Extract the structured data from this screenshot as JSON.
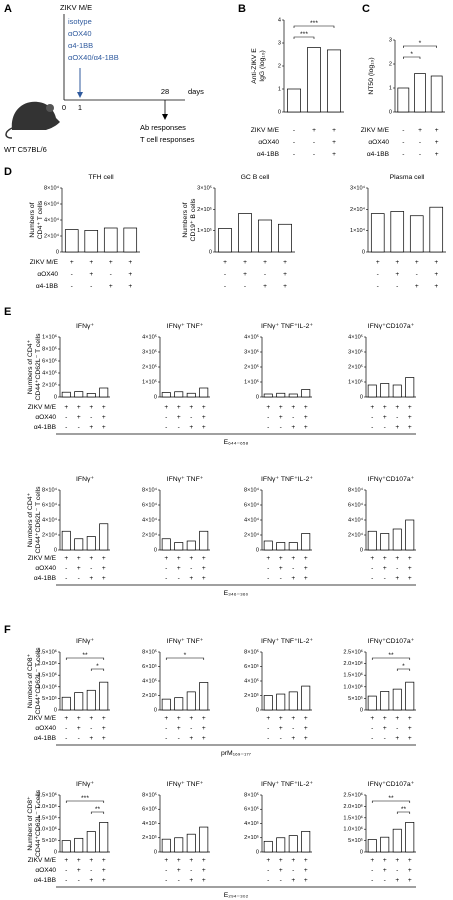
{
  "panel_labels": [
    "A",
    "B",
    "C",
    "D",
    "E",
    "F"
  ],
  "schematic": {
    "vaccine": "ZIKV M/E",
    "treatments": [
      "isotype",
      "αOX40",
      "α4-1BB",
      "αOX40/α4-1BB"
    ],
    "timepoints": [
      "0",
      "1",
      "28"
    ],
    "unit": "days",
    "readouts": [
      "Ab responses",
      "T cell responses"
    ],
    "mouse": "WT C57BL/6"
  },
  "condition_labels": [
    [
      "ZIKV M/E",
      "αOX40",
      "α4-1BB"
    ],
    [
      "ZIKV M/E",
      "αOX40",
      "α4-1BB"
    ],
    [
      "ZIKV M/E",
      "αOX40",
      "α4-1BB"
    ],
    [
      "ZIKV M/E",
      "αOX40",
      "α4-1BB"
    ],
    [
      "ZIKV M/E",
      "αOX40",
      "α4-1BB"
    ],
    [
      "ZIKV M/E",
      "αOX40",
      "α4-1BB"
    ],
    [
      "ZIKV M/E",
      "αOX40",
      "α4-1BB"
    ]
  ],
  "epitopes": [
    "E₆₄₄₋₆₅₈",
    "E₃₄₆₋₃₆₀",
    "prM₁₆₉₋₁₇₇",
    "E₂₉₄₋₃₀₂"
  ],
  "chart_data": [
    {
      "type": "bar",
      "y_label": [
        "Anti-ZIKV E",
        "IgG (log₁₀)"
      ],
      "values": [
        1.0,
        2.8,
        2.7
      ],
      "color": "#ffffff",
      "ylim": [
        0,
        4
      ],
      "yticks": [
        0,
        1,
        2,
        3,
        4
      ],
      "signs": [
        [
          "-",
          "+",
          "+"
        ],
        [
          "-",
          "-",
          "+"
        ],
        [
          "-",
          "-",
          "+"
        ]
      ],
      "annotations": [
        "***",
        "***"
      ]
    },
    {
      "type": "bar",
      "y_label": [
        "NT50 (log₁₀)"
      ],
      "values": [
        1.0,
        1.6,
        1.5
      ],
      "color": "#ffffff",
      "ylim": [
        0,
        3
      ],
      "yticks": [
        0,
        1,
        2,
        3
      ],
      "signs": [
        [
          "-",
          "+",
          "+"
        ],
        [
          "-",
          "-",
          "+"
        ],
        [
          "-",
          "-",
          "+"
        ]
      ],
      "annotations": [
        "*",
        "*"
      ]
    },
    {
      "type": "bar",
      "title": "TFH cell",
      "y_label": [
        "Numbers of",
        "CD4⁺ T cells"
      ],
      "values": [
        28000,
        27000,
        30000,
        30000
      ],
      "color": "#ffffff",
      "ylim": [
        0,
        80000
      ],
      "yticks": [
        0,
        {
          "value": 20000,
          "label": "2×10⁴"
        },
        {
          "value": 40000,
          "label": "4×10⁴"
        },
        {
          "value": 60000,
          "label": "6×10⁴"
        },
        {
          "value": 80000,
          "label": "8×10⁴"
        }
      ],
      "signs": [
        [
          "+",
          "+",
          "+",
          "+"
        ],
        [
          "-",
          "+",
          "-",
          "+"
        ],
        [
          "-",
          "-",
          "+",
          "+"
        ]
      ]
    },
    {
      "type": "bar",
      "title": "GC B cell",
      "y_label": [
        "Numbers of",
        "CD19⁺ B cells"
      ],
      "values": [
        110000,
        180000,
        150000,
        130000
      ],
      "color": "#ffffff",
      "ylim": [
        0,
        300000
      ],
      "yticks": [
        0,
        {
          "value": 100000,
          "label": "1×10⁵"
        },
        {
          "value": 200000,
          "label": "2×10⁵"
        },
        {
          "value": 300000,
          "label": "3×10⁵"
        }
      ],
      "signs": [
        [
          "+",
          "+",
          "+",
          "+"
        ],
        [
          "-",
          "+",
          "-",
          "+"
        ],
        [
          "-",
          "-",
          "+",
          "+"
        ]
      ]
    },
    {
      "type": "bar",
      "title": "Plasma cell",
      "values": [
        18000,
        19000,
        17000,
        21000
      ],
      "color": "#ffffff",
      "ylim": [
        0,
        30000
      ],
      "yticks": [
        0,
        {
          "value": 10000,
          "label": "1×10⁴"
        },
        {
          "value": 20000,
          "label": "2×10⁴"
        },
        {
          "value": 30000,
          "label": "3×10⁴"
        }
      ],
      "signs": [
        [
          "+",
          "+",
          "+",
          "+"
        ],
        [
          "-",
          "+",
          "-",
          "+"
        ],
        [
          "-",
          "-",
          "+",
          "+"
        ]
      ]
    },
    {
      "type": "bar",
      "title": "IFNγ⁺",
      "y_label": [
        "Numbers of CD4⁺",
        "CD44⁺CD62L⁻ T cells"
      ],
      "values": [
        80000,
        90000,
        60000,
        150000
      ],
      "color": "#ffffff",
      "ylim": [
        0,
        1000000
      ],
      "yticks": [
        0,
        {
          "value": 200000,
          "label": "2×10⁵"
        },
        {
          "value": 400000,
          "label": "4×10⁵"
        },
        {
          "value": 600000,
          "label": "6×10⁵"
        },
        {
          "value": 800000,
          "label": "8×10⁵"
        },
        {
          "value": 1000000,
          "label": "1×10⁶"
        }
      ],
      "signs": [
        [
          "+",
          "+",
          "+",
          "+"
        ],
        [
          "-",
          "+",
          "-",
          "+"
        ],
        [
          "-",
          "-",
          "+",
          "+"
        ]
      ]
    },
    {
      "type": "bar",
      "title": "IFNγ⁺ TNF⁺",
      "values": [
        30000,
        35000,
        25000,
        60000
      ],
      "color": "#ffffff",
      "ylim": [
        0,
        400000
      ],
      "yticks": [
        0,
        {
          "value": 100000,
          "label": "1×10⁵"
        },
        {
          "value": 200000,
          "label": "2×10⁵"
        },
        {
          "value": 300000,
          "label": "3×10⁵"
        },
        {
          "value": 400000,
          "label": "4×10⁵"
        }
      ],
      "signs": [
        [
          "+",
          "+",
          "+",
          "+"
        ],
        [
          "-",
          "+",
          "-",
          "+"
        ],
        [
          "-",
          "-",
          "+",
          "+"
        ]
      ]
    },
    {
      "type": "bar",
      "title": "IFNγ⁺ TNF⁺IL-2⁺",
      "values": [
        20000,
        25000,
        20000,
        50000
      ],
      "color": "#ffffff",
      "ylim": [
        0,
        400000
      ],
      "yticks": [
        0,
        {
          "value": 100000,
          "label": "1×10⁵"
        },
        {
          "value": 200000,
          "label": "2×10⁵"
        },
        {
          "value": 300000,
          "label": "3×10⁵"
        },
        {
          "value": 400000,
          "label": "4×10⁵"
        }
      ],
      "signs": [
        [
          "+",
          "+",
          "+",
          "+"
        ],
        [
          "-",
          "+",
          "-",
          "+"
        ],
        [
          "-",
          "-",
          "+",
          "+"
        ]
      ]
    },
    {
      "type": "bar",
      "title": "IFNγ⁺CD107a⁺",
      "values": [
        80000,
        90000,
        80000,
        130000
      ],
      "color": "#ffffff",
      "ylim": [
        0,
        400000
      ],
      "yticks": [
        0,
        {
          "value": 100000,
          "label": "1×10⁵"
        },
        {
          "value": 200000,
          "label": "2×10⁵"
        },
        {
          "value": 300000,
          "label": "3×10⁵"
        },
        {
          "value": 400000,
          "label": "4×10⁵"
        }
      ],
      "signs": [
        [
          "+",
          "+",
          "+",
          "+"
        ],
        [
          "-",
          "+",
          "-",
          "+"
        ],
        [
          "-",
          "-",
          "+",
          "+"
        ]
      ]
    },
    {
      "type": "bar",
      "title": "IFNγ⁺",
      "y_label": [
        "Numbers of CD4⁺",
        "CD44⁺CD62L⁻ T cells"
      ],
      "values": [
        25000,
        15000,
        18000,
        35000
      ],
      "color": "#ffffff",
      "ylim": [
        0,
        80000
      ],
      "yticks": [
        0,
        {
          "value": 20000,
          "label": "2×10⁴"
        },
        {
          "value": 40000,
          "label": "4×10⁴"
        },
        {
          "value": 60000,
          "label": "6×10⁴"
        },
        {
          "value": 80000,
          "label": "8×10⁴"
        }
      ],
      "signs": [
        [
          "+",
          "+",
          "+",
          "+"
        ],
        [
          "-",
          "+",
          "-",
          "+"
        ],
        [
          "-",
          "-",
          "+",
          "+"
        ]
      ]
    },
    {
      "type": "bar",
      "title": "IFNγ⁺ TNF⁺",
      "values": [
        15000,
        10000,
        12000,
        25000
      ],
      "color": "#ffffff",
      "ylim": [
        0,
        80000
      ],
      "yticks": [
        0,
        {
          "value": 20000,
          "label": "2×10⁴"
        },
        {
          "value": 40000,
          "label": "4×10⁴"
        },
        {
          "value": 60000,
          "label": "6×10⁴"
        },
        {
          "value": 80000,
          "label": "8×10⁴"
        }
      ],
      "signs": [
        [
          "+",
          "+",
          "+",
          "+"
        ],
        [
          "-",
          "+",
          "-",
          "+"
        ],
        [
          "-",
          "-",
          "+",
          "+"
        ]
      ]
    },
    {
      "type": "bar",
      "title": "IFNγ⁺ TNF⁺IL-2⁺",
      "values": [
        12000,
        10000,
        10000,
        22000
      ],
      "color": "#ffffff",
      "ylim": [
        0,
        80000
      ],
      "yticks": [
        0,
        {
          "value": 20000,
          "label": "2×10⁴"
        },
        {
          "value": 40000,
          "label": "4×10⁴"
        },
        {
          "value": 60000,
          "label": "6×10⁴"
        },
        {
          "value": 80000,
          "label": "8×10⁴"
        }
      ],
      "signs": [
        [
          "+",
          "+",
          "+",
          "+"
        ],
        [
          "-",
          "+",
          "-",
          "+"
        ],
        [
          "-",
          "-",
          "+",
          "+"
        ]
      ]
    },
    {
      "type": "bar",
      "title": "IFNγ⁺CD107a⁺",
      "values": [
        25000,
        22000,
        28000,
        40000
      ],
      "color": "#ffffff",
      "ylim": [
        0,
        80000
      ],
      "yticks": [
        0,
        {
          "value": 20000,
          "label": "2×10⁴"
        },
        {
          "value": 40000,
          "label": "4×10⁴"
        },
        {
          "value": 60000,
          "label": "6×10⁴"
        },
        {
          "value": 80000,
          "label": "8×10⁴"
        }
      ],
      "signs": [
        [
          "+",
          "+",
          "+",
          "+"
        ],
        [
          "-",
          "+",
          "-",
          "+"
        ],
        [
          "-",
          "-",
          "+",
          "+"
        ]
      ]
    },
    {
      "type": "bar",
      "title": "IFNγ⁺",
      "y_label": [
        "Numbers of CD8⁺",
        "CD44⁺CD62L⁻ T cells"
      ],
      "values": [
        550000,
        750000,
        850000,
        1200000
      ],
      "color": "#ffffff",
      "ylim": [
        0,
        2500000
      ],
      "yticks": [
        0,
        {
          "value": 500000,
          "label": "5×10⁵"
        },
        {
          "value": 1000000,
          "label": "1.0×10⁶"
        },
        {
          "value": 1500000,
          "label": "1.5×10⁶"
        },
        {
          "value": 2000000,
          "label": "2.0×10⁶"
        },
        {
          "value": 2500000,
          "label": "2.5×10⁶"
        }
      ],
      "signs": [
        [
          "+",
          "+",
          "+",
          "+"
        ],
        [
          "-",
          "+",
          "-",
          "+"
        ],
        [
          "-",
          "-",
          "+",
          "+"
        ]
      ],
      "annotations": [
        "**",
        "*"
      ]
    },
    {
      "type": "bar",
      "title": "IFNγ⁺ TNF⁺",
      "values": [
        150000,
        170000,
        250000,
        380000
      ],
      "color": "#ffffff",
      "ylim": [
        0,
        800000
      ],
      "yticks": [
        0,
        {
          "value": 200000,
          "label": "2×10⁵"
        },
        {
          "value": 400000,
          "label": "4×10⁵"
        },
        {
          "value": 600000,
          "label": "6×10⁵"
        },
        {
          "value": 800000,
          "label": "8×10⁵"
        }
      ],
      "signs": [
        [
          "+",
          "+",
          "+",
          "+"
        ],
        [
          "-",
          "+",
          "-",
          "+"
        ],
        [
          "-",
          "-",
          "+",
          "+"
        ]
      ],
      "annotations": [
        "*"
      ]
    },
    {
      "type": "bar",
      "title": "IFNγ⁺ TNF⁺IL-2⁺",
      "values": [
        200000,
        220000,
        250000,
        330000
      ],
      "color": "#ffffff",
      "ylim": [
        0,
        800000
      ],
      "yticks": [
        0,
        {
          "value": 200000,
          "label": "2×10⁵"
        },
        {
          "value": 400000,
          "label": "4×10⁵"
        },
        {
          "value": 600000,
          "label": "6×10⁵"
        },
        {
          "value": 800000,
          "label": "8×10⁵"
        }
      ],
      "signs": [
        [
          "+",
          "+",
          "+",
          "+"
        ],
        [
          "-",
          "+",
          "-",
          "+"
        ],
        [
          "-",
          "-",
          "+",
          "+"
        ]
      ]
    },
    {
      "type": "bar",
      "title": "IFNγ⁺CD107a⁺",
      "values": [
        600000,
        800000,
        900000,
        1200000
      ],
      "color": "#ffffff",
      "ylim": [
        0,
        2500000
      ],
      "yticks": [
        0,
        {
          "value": 500000,
          "label": "5×10⁵"
        },
        {
          "value": 1000000,
          "label": "1.0×10⁶"
        },
        {
          "value": 1500000,
          "label": "1.5×10⁶"
        },
        {
          "value": 2000000,
          "label": "2.0×10⁶"
        },
        {
          "value": 2500000,
          "label": "2.5×10⁶"
        }
      ],
      "signs": [
        [
          "+",
          "+",
          "+",
          "+"
        ],
        [
          "-",
          "+",
          "-",
          "+"
        ],
        [
          "-",
          "-",
          "+",
          "+"
        ]
      ],
      "annotations": [
        "**",
        "*"
      ]
    },
    {
      "type": "bar",
      "title": "IFNγ⁺",
      "y_label": [
        "Numbers of CD8⁺",
        "CD44⁺CD62L⁻ T cells"
      ],
      "values": [
        500000,
        600000,
        900000,
        1300000
      ],
      "color": "#ffffff",
      "ylim": [
        0,
        2500000
      ],
      "yticks": [
        0,
        {
          "value": 500000,
          "label": "5×10⁵"
        },
        {
          "value": 1000000,
          "label": "1.0×10⁶"
        },
        {
          "value": 1500000,
          "label": "1.5×10⁶"
        },
        {
          "value": 2000000,
          "label": "2.0×10⁶"
        },
        {
          "value": 2500000,
          "label": "2.5×10⁶"
        }
      ],
      "signs": [
        [
          "+",
          "+",
          "+",
          "+"
        ],
        [
          "-",
          "+",
          "-",
          "+"
        ],
        [
          "-",
          "-",
          "+",
          "+"
        ]
      ],
      "annotations": [
        "***",
        "**"
      ]
    },
    {
      "type": "bar",
      "title": "IFNγ⁺ TNF⁺",
      "values": [
        180000,
        200000,
        250000,
        350000
      ],
      "color": "#ffffff",
      "ylim": [
        0,
        800000
      ],
      "yticks": [
        0,
        {
          "value": 200000,
          "label": "2×10⁵"
        },
        {
          "value": 400000,
          "label": "4×10⁵"
        },
        {
          "value": 600000,
          "label": "6×10⁵"
        },
        {
          "value": 800000,
          "label": "8×10⁵"
        }
      ],
      "signs": [
        [
          "+",
          "+",
          "+",
          "+"
        ],
        [
          "-",
          "+",
          "-",
          "+"
        ],
        [
          "-",
          "-",
          "+",
          "+"
        ]
      ]
    },
    {
      "type": "bar",
      "title": "IFNγ⁺ TNF⁺IL-2⁺",
      "values": [
        150000,
        200000,
        230000,
        290000
      ],
      "color": "#ffffff",
      "ylim": [
        0,
        800000
      ],
      "yticks": [
        0,
        {
          "value": 200000,
          "label": "2×10⁵"
        },
        {
          "value": 400000,
          "label": "4×10⁵"
        },
        {
          "value": 600000,
          "label": "6×10⁵"
        },
        {
          "value": 800000,
          "label": "8×10⁵"
        }
      ],
      "signs": [
        [
          "+",
          "+",
          "+",
          "+"
        ],
        [
          "-",
          "+",
          "-",
          "+"
        ],
        [
          "-",
          "-",
          "+",
          "+"
        ]
      ]
    },
    {
      "type": "bar",
      "title": "IFNγ⁺CD107a⁺",
      "values": [
        550000,
        650000,
        1000000,
        1300000
      ],
      "color": "#ffffff",
      "ylim": [
        0,
        2500000
      ],
      "yticks": [
        0,
        {
          "value": 500000,
          "label": "5×10⁵"
        },
        {
          "value": 1000000,
          "label": "1.0×10⁶"
        },
        {
          "value": 1500000,
          "label": "1.5×10⁶"
        },
        {
          "value": 2000000,
          "label": "2.0×10⁶"
        },
        {
          "value": 2500000,
          "label": "2.5×10⁶"
        }
      ],
      "signs": [
        [
          "+",
          "+",
          "+",
          "+"
        ],
        [
          "-",
          "+",
          "-",
          "+"
        ],
        [
          "-",
          "-",
          "+",
          "+"
        ]
      ],
      "annotations": [
        "**",
        "**"
      ]
    }
  ]
}
